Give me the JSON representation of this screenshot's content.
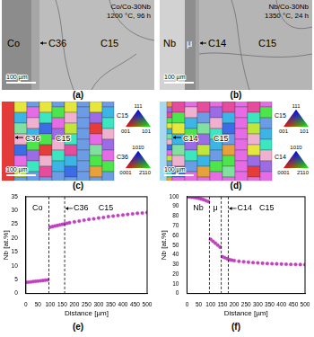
{
  "panels": [
    {
      "label": "(a)",
      "title": "Co/Co-30Nb",
      "condition": "1200 °C, 96 h",
      "phases": [
        "Co",
        "C36",
        "C15"
      ],
      "scale_bar": "100 µm"
    },
    {
      "label": "(b)",
      "title": "Nb/Co-30Nb",
      "condition": "1350 °C, 24 h",
      "phases": [
        "Nb",
        "μ",
        "C14",
        "C15"
      ],
      "scale_bar": "100 µm"
    },
    {
      "label": "(c)",
      "phases": [
        "C36",
        "C15"
      ],
      "scale_bar": "100 µm",
      "color_keys": [
        {
          "phase": "C15",
          "corners": [
            "111",
            "001",
            "101"
          ]
        },
        {
          "phase": "C36",
          "corners": [
            "101̄0",
            "0001",
            "2̄110"
          ]
        }
      ]
    },
    {
      "label": "(d)",
      "phases": [
        "C14",
        "C15"
      ],
      "scale_bar": "100 µm",
      "color_keys": [
        {
          "phase": "C15",
          "corners": [
            "111",
            "001",
            "101"
          ]
        },
        {
          "phase": "C14",
          "corners": [
            "101̄0",
            "0001",
            "2̄110"
          ]
        }
      ]
    }
  ],
  "chart_data": [
    {
      "type": "scatter",
      "label": "(e)",
      "x_label": "Distance [µm]",
      "y_label": "Nb [at.%]",
      "xlim": [
        0,
        500
      ],
      "xticks": [
        0,
        50,
        100,
        150,
        200,
        250,
        300,
        350,
        400,
        450,
        500
      ],
      "ylim": [
        0,
        35
      ],
      "yticks": [
        0,
        5,
        10,
        15,
        20,
        25,
        30,
        35
      ],
      "grid": false,
      "color": "#c040c0",
      "marker": "circle",
      "boundaries": [
        95,
        160
      ],
      "regions": [
        "Co",
        "C36",
        "C15"
      ],
      "x": [
        0,
        10,
        20,
        30,
        40,
        50,
        60,
        70,
        80,
        90,
        100,
        110,
        120,
        130,
        140,
        150,
        160,
        170,
        180,
        200,
        220,
        240,
        260,
        280,
        300,
        320,
        340,
        360,
        380,
        400,
        420,
        440,
        460,
        480,
        500
      ],
      "values": [
        4.0,
        4.1,
        4.2,
        4.3,
        4.4,
        4.5,
        4.6,
        4.7,
        4.8,
        4.9,
        24.0,
        24.2,
        24.4,
        24.6,
        24.8,
        25.0,
        25.2,
        25.4,
        25.6,
        25.9,
        26.2,
        26.5,
        26.8,
        27.0,
        27.3,
        27.5,
        27.8,
        28.0,
        28.2,
        28.4,
        28.6,
        28.8,
        29.0,
        29.1,
        29.3
      ]
    },
    {
      "type": "scatter",
      "label": "(f)",
      "x_label": "Distance [µm]",
      "y_label": "Nb [at.%]",
      "xlim": [
        0,
        500
      ],
      "xticks": [
        0,
        50,
        100,
        150,
        200,
        250,
        300,
        350,
        400,
        450,
        500
      ],
      "ylim": [
        0,
        100
      ],
      "yticks": [
        0,
        10,
        20,
        30,
        40,
        50,
        60,
        70,
        80,
        90,
        100
      ],
      "grid": false,
      "color": "#c040c0",
      "marker": "circle",
      "boundaries": [
        95,
        145,
        175
      ],
      "regions": [
        "Nb",
        "μ",
        "C14",
        "C15"
      ],
      "x": [
        0,
        10,
        20,
        30,
        40,
        50,
        60,
        70,
        80,
        90,
        100,
        110,
        120,
        130,
        140,
        150,
        160,
        170,
        180,
        190,
        200,
        220,
        240,
        260,
        280,
        300,
        320,
        340,
        360,
        380,
        400,
        420,
        440,
        460,
        480,
        500
      ],
      "values": [
        100,
        99.8,
        99.5,
        99.2,
        98.8,
        98.3,
        97.7,
        97.0,
        96.0,
        95.0,
        56,
        54,
        52,
        50,
        48,
        38,
        37,
        36,
        35,
        34.5,
        34,
        33.3,
        32.8,
        32.3,
        31.9,
        31.6,
        31.3,
        31.0,
        30.8,
        30.6,
        30.4,
        30.2,
        30.1,
        30.0,
        29.9,
        29.8
      ]
    }
  ]
}
